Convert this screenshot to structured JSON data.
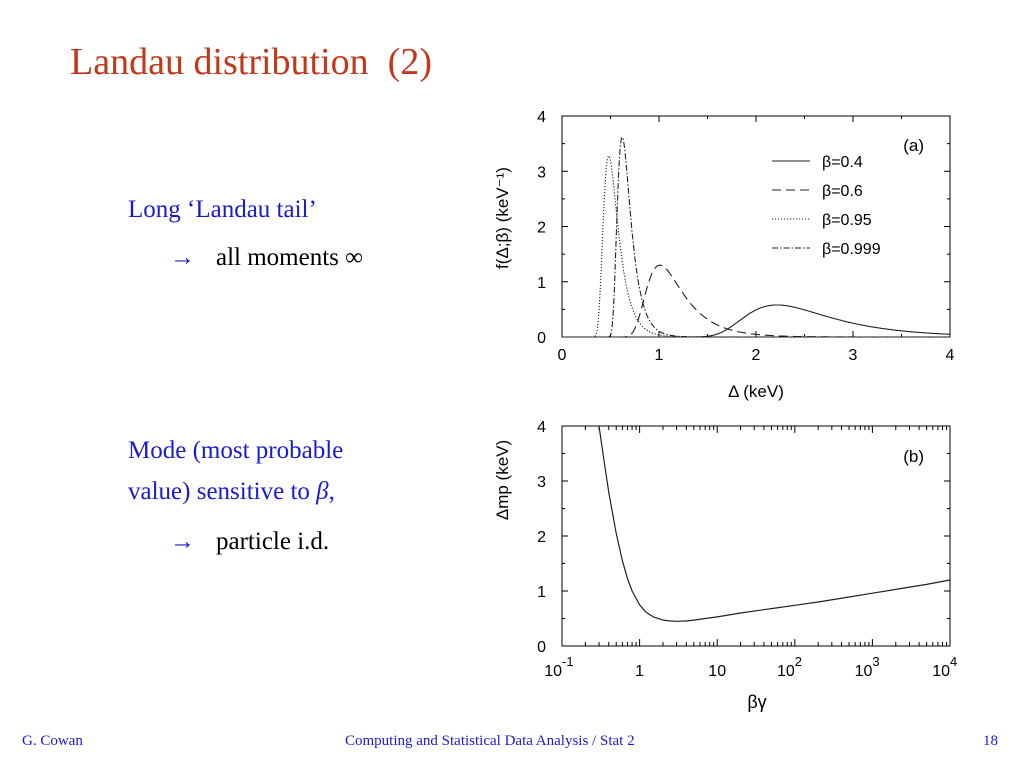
{
  "slide": {
    "title": "Landau distribution  (2)",
    "bullet1": "Long ‘Landau tail’",
    "arrow1": "all moments ∞",
    "bullet2_line1": "Mode (most probable",
    "bullet2_line2": "value) sensitive to",
    "bullet2_symbol": "β",
    "bullet2_comma": ",",
    "arrow2": "particle i.d.",
    "arrow_glyph": "→",
    "accent_title_color": "#c0391b",
    "text_color": "#1a1ad0"
  },
  "footer": {
    "author": "G. Cowan",
    "course": "Computing and Statistical Data Analysis / Stat 2",
    "page": "18"
  },
  "chart_data": [
    {
      "type": "line",
      "panel_label": "(a)",
      "xlabel": "Δ   (keV)",
      "ylabel": "f(Δ;β)   (keV⁻¹)",
      "xlim": [
        0,
        4
      ],
      "ylim": [
        0,
        4
      ],
      "xticks": [
        "0",
        "1",
        "2",
        "3",
        "4"
      ],
      "yticks": [
        "0",
        "1",
        "2",
        "3",
        "4"
      ],
      "legend_position": "top-right",
      "series": [
        {
          "name": "β=0.4",
          "style": "solid",
          "mpv": 2.15,
          "peak": 0.58,
          "width": 0.3
        },
        {
          "name": "β=0.6",
          "style": "dashed",
          "mpv": 0.98,
          "peak": 1.3,
          "width": 0.13
        },
        {
          "name": "β=0.95",
          "style": "dotted",
          "mpv": 0.47,
          "peak": 3.28,
          "width": 0.052
        },
        {
          "name": "β=0.999",
          "style": "dashdot",
          "mpv": 0.61,
          "peak": 3.62,
          "width": 0.047
        }
      ]
    },
    {
      "type": "line",
      "panel_label": "(b)",
      "xlabel": "βγ",
      "ylabel": "Δmp   (keV)",
      "xscale": "log",
      "xlim": [
        0.1,
        10000
      ],
      "ylim": [
        0,
        4
      ],
      "xtick_base": "10",
      "xtick_exponents": [
        "-1",
        "",
        "",
        "2",
        "3",
        "4"
      ],
      "xtick_mantissas": [
        "10",
        "1",
        "10",
        "10",
        "10",
        "10"
      ],
      "yticks": [
        "0",
        "1",
        "2",
        "3",
        "4"
      ],
      "series": [
        {
          "name": "",
          "x": [
            0.3,
            0.35,
            0.4,
            0.5,
            0.6,
            0.7,
            0.8,
            1.0,
            1.2,
            1.5,
            2,
            2.5,
            3,
            4,
            5,
            7,
            10,
            20,
            50,
            100,
            200,
            500,
            1000,
            2000,
            5000,
            10000
          ],
          "y": [
            4.0,
            3.35,
            2.8,
            2.05,
            1.55,
            1.22,
            1.0,
            0.75,
            0.62,
            0.53,
            0.47,
            0.455,
            0.45,
            0.455,
            0.47,
            0.5,
            0.53,
            0.6,
            0.68,
            0.74,
            0.8,
            0.89,
            0.96,
            1.03,
            1.12,
            1.2
          ]
        }
      ]
    }
  ]
}
